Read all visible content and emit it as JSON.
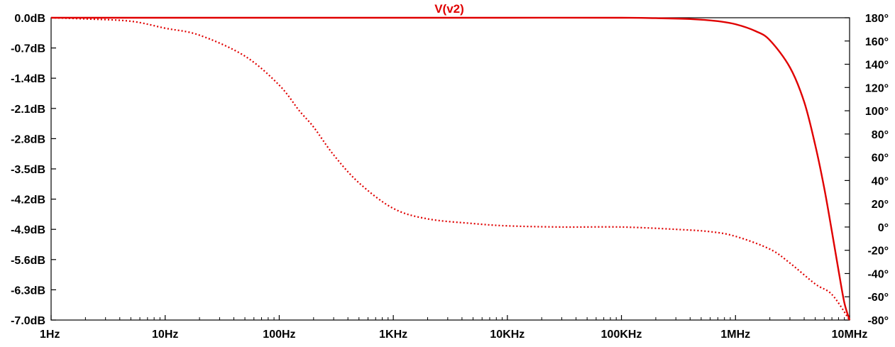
{
  "chart_data": {
    "type": "line",
    "title": "V(v2)",
    "title_color": "#e00000",
    "x_scale": "log",
    "xlim": [
      1,
      10000000
    ],
    "x_tick_values": [
      1,
      10,
      100,
      1000,
      10000,
      100000,
      1000000,
      10000000
    ],
    "x_tick_labels": [
      "1Hz",
      "10Hz",
      "100Hz",
      "1KHz",
      "10KHz",
      "100KHz",
      "1MHz",
      "10MHz"
    ],
    "ylim_left": [
      -7.0,
      0.0
    ],
    "y_left_tick_values": [
      0.0,
      -0.7,
      -1.4,
      -2.1,
      -2.8,
      -3.5,
      -4.2,
      -4.9,
      -5.6,
      -6.3,
      -7.0
    ],
    "y_left_tick_labels": [
      "0.0dB",
      "-0.7dB",
      "-1.4dB",
      "-2.1dB",
      "-2.8dB",
      "-3.5dB",
      "-4.2dB",
      "-4.9dB",
      "-5.6dB",
      "-6.3dB",
      "-7.0dB"
    ],
    "ylim_right": [
      -80,
      180
    ],
    "y_right_tick_values": [
      180,
      160,
      140,
      120,
      100,
      80,
      60,
      40,
      20,
      0,
      -20,
      -40,
      -60,
      -80
    ],
    "y_right_tick_labels": [
      "180°",
      "160°",
      "140°",
      "120°",
      "100°",
      "80°",
      "60°",
      "40°",
      "20°",
      "0°",
      "-20°",
      "-40°",
      "-60°",
      "-80°"
    ],
    "grid": false,
    "series": [
      {
        "axis": "left",
        "style": "solid",
        "color": "#e00000",
        "x": [
          1,
          10,
          100,
          1000,
          10000,
          100000,
          200000,
          400000,
          700000,
          1000000,
          1500000,
          2000000,
          3000000,
          4000000,
          5000000,
          6000000,
          7000000,
          8000000,
          9000000,
          10000000
        ],
        "y": [
          0.0,
          0.0,
          0.0,
          0.0,
          0.0,
          0.0,
          -0.01,
          -0.03,
          -0.08,
          -0.15,
          -0.31,
          -0.52,
          -1.15,
          -1.95,
          -2.95,
          -3.95,
          -4.95,
          -5.85,
          -6.6,
          -7.0
        ]
      },
      {
        "axis": "right",
        "style": "dotted",
        "color": "#e00000",
        "x": [
          1,
          2,
          5,
          10,
          20,
          50,
          100,
          150,
          200,
          300,
          500,
          1000,
          2000,
          5000,
          10000,
          30000,
          100000,
          300000,
          600000,
          1000000,
          2000000,
          3000000,
          5000000,
          7000000,
          10000000
        ],
        "y": [
          180,
          179,
          177,
          171,
          165,
          147,
          122,
          100,
          86,
          62,
          38,
          16,
          7,
          3,
          1,
          0,
          0,
          -2,
          -4,
          -8,
          -19,
          -31,
          -49,
          -58,
          -80
        ]
      }
    ]
  }
}
